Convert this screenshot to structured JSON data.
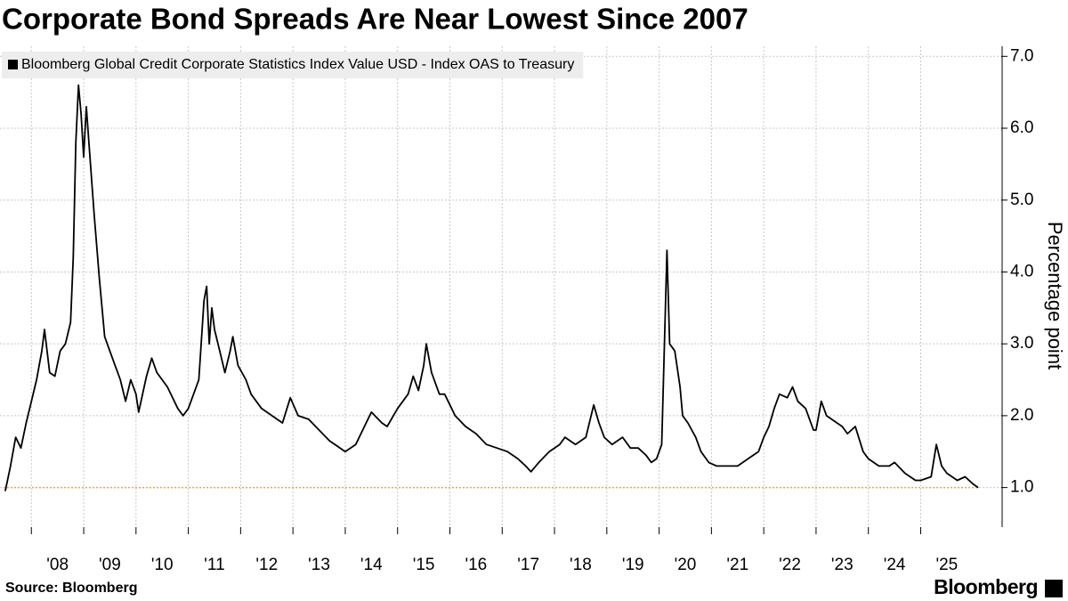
{
  "chart_data": {
    "type": "line",
    "title": "Corporate Bond Spreads Are Near Lowest Since 2007",
    "y_label": "Percentage point",
    "source": "Source: Bloomberg",
    "brand": "Bloomberg",
    "xlim": [
      2007.4,
      2026.54
    ],
    "ylim": [
      0.45,
      7.14
    ],
    "xticks": [
      {
        "value": 2008,
        "label": "'08"
      },
      {
        "value": 2009,
        "label": "'09"
      },
      {
        "value": 2010,
        "label": "'10"
      },
      {
        "value": 2011,
        "label": "'11"
      },
      {
        "value": 2012,
        "label": "'12"
      },
      {
        "value": 2013,
        "label": "'13"
      },
      {
        "value": 2014,
        "label": "'14"
      },
      {
        "value": 2015,
        "label": "'15"
      },
      {
        "value": 2016,
        "label": "'16"
      },
      {
        "value": 2017,
        "label": "'17"
      },
      {
        "value": 2018,
        "label": "'18"
      },
      {
        "value": 2019,
        "label": "'19"
      },
      {
        "value": 2020,
        "label": "'20"
      },
      {
        "value": 2021,
        "label": "'21"
      },
      {
        "value": 2022,
        "label": "'22"
      },
      {
        "value": 2023,
        "label": "'23"
      },
      {
        "value": 2024,
        "label": "'24"
      },
      {
        "value": 2025,
        "label": "'25"
      }
    ],
    "yticks": [
      {
        "value": 1,
        "label": "1.0"
      },
      {
        "value": 2,
        "label": "2.0"
      },
      {
        "value": 3,
        "label": "3.0"
      },
      {
        "value": 4,
        "label": "4.0"
      },
      {
        "value": 5,
        "label": "5.0"
      },
      {
        "value": 6,
        "label": "6.0"
      },
      {
        "value": 7,
        "label": "7.0"
      }
    ],
    "grid": true,
    "legend": "top-left",
    "reference_line": {
      "value": 1.0,
      "color": "#f0a830"
    },
    "x": [
      2007.5,
      2007.6,
      2007.7,
      2007.8,
      2007.9,
      2008.0,
      2008.1,
      2008.2,
      2008.25,
      2008.35,
      2008.45,
      2008.55,
      2008.65,
      2008.75,
      2008.8,
      2008.85,
      2008.9,
      2008.95,
      2009.0,
      2009.05,
      2009.1,
      2009.2,
      2009.3,
      2009.4,
      2009.5,
      2009.6,
      2009.7,
      2009.8,
      2009.9,
      2010.0,
      2010.05,
      2010.2,
      2010.3,
      2010.4,
      2010.5,
      2010.6,
      2010.8,
      2010.9,
      2011.0,
      2011.1,
      2011.2,
      2011.3,
      2011.35,
      2011.4,
      2011.45,
      2011.5,
      2011.6,
      2011.7,
      2011.8,
      2011.85,
      2011.95,
      2012.1,
      2012.2,
      2012.4,
      2012.6,
      2012.8,
      2012.95,
      2013.1,
      2013.3,
      2013.5,
      2013.7,
      2013.9,
      2014.0,
      2014.2,
      2014.4,
      2014.5,
      2014.7,
      2014.8,
      2015.0,
      2015.2,
      2015.3,
      2015.4,
      2015.5,
      2015.55,
      2015.65,
      2015.8,
      2015.9,
      2016.1,
      2016.3,
      2016.5,
      2016.7,
      2016.9,
      2017.1,
      2017.3,
      2017.45,
      2017.55,
      2017.7,
      2017.9,
      2018.1,
      2018.2,
      2018.4,
      2018.6,
      2018.75,
      2018.85,
      2018.95,
      2019.1,
      2019.3,
      2019.45,
      2019.6,
      2019.75,
      2019.85,
      2019.95,
      2020.05,
      2020.15,
      2020.2,
      2020.3,
      2020.4,
      2020.45,
      2020.55,
      2020.7,
      2020.8,
      2020.95,
      2021.1,
      2021.3,
      2021.5,
      2021.7,
      2021.9,
      2022.0,
      2022.1,
      2022.2,
      2022.3,
      2022.45,
      2022.55,
      2022.65,
      2022.8,
      2022.95,
      2023.0,
      2023.1,
      2023.2,
      2023.4,
      2023.5,
      2023.6,
      2023.75,
      2023.9,
      2024.0,
      2024.2,
      2024.4,
      2024.5,
      2024.7,
      2024.9,
      2025.0,
      2025.2,
      2025.3,
      2025.4,
      2025.5,
      2025.7,
      2025.85,
      2026.0,
      2026.1
    ],
    "series": [
      {
        "name": "Bloomberg Global Credit Corporate Statistics Index Value USD - Index OAS to Treasury",
        "color": "#000000",
        "values": [
          0.95,
          1.3,
          1.7,
          1.55,
          1.9,
          2.2,
          2.5,
          2.9,
          3.2,
          2.6,
          2.55,
          2.9,
          3.0,
          3.3,
          4.2,
          5.8,
          6.6,
          6.2,
          5.6,
          6.3,
          5.8,
          4.8,
          3.9,
          3.1,
          2.9,
          2.7,
          2.5,
          2.2,
          2.5,
          2.3,
          2.05,
          2.55,
          2.8,
          2.6,
          2.5,
          2.4,
          2.1,
          2.0,
          2.1,
          2.3,
          2.5,
          3.6,
          3.8,
          3.0,
          3.5,
          3.2,
          2.9,
          2.6,
          2.9,
          3.1,
          2.7,
          2.5,
          2.3,
          2.1,
          2.0,
          1.9,
          2.25,
          2.0,
          1.95,
          1.8,
          1.65,
          1.55,
          1.5,
          1.6,
          1.9,
          2.05,
          1.9,
          1.85,
          2.1,
          2.3,
          2.55,
          2.35,
          2.7,
          3.0,
          2.6,
          2.3,
          2.3,
          2.0,
          1.85,
          1.75,
          1.6,
          1.55,
          1.5,
          1.4,
          1.3,
          1.22,
          1.35,
          1.5,
          1.6,
          1.7,
          1.6,
          1.7,
          2.15,
          1.9,
          1.7,
          1.6,
          1.7,
          1.55,
          1.55,
          1.45,
          1.35,
          1.4,
          1.6,
          4.3,
          3.0,
          2.9,
          2.4,
          2.0,
          1.9,
          1.7,
          1.5,
          1.35,
          1.3,
          1.3,
          1.3,
          1.4,
          1.5,
          1.7,
          1.85,
          2.1,
          2.3,
          2.25,
          2.4,
          2.2,
          2.1,
          1.8,
          1.8,
          2.2,
          2.0,
          1.9,
          1.85,
          1.75,
          1.85,
          1.5,
          1.4,
          1.3,
          1.3,
          1.35,
          1.2,
          1.1,
          1.1,
          1.15,
          1.6,
          1.3,
          1.2,
          1.1,
          1.15,
          1.05,
          1.0
        ]
      }
    ]
  }
}
